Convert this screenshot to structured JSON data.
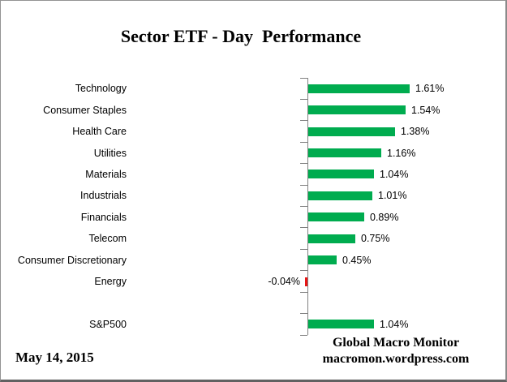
{
  "header": {
    "title": "Sector ETF - Day  Performance"
  },
  "chart_data": {
    "type": "bar",
    "orientation": "horizontal",
    "title": "Sector ETF - Day  Performance",
    "xlabel": "",
    "ylabel": "",
    "value_unit": "%",
    "grid": false,
    "legend": false,
    "categories": [
      "Technology",
      "Consumer Staples",
      "Health Care",
      "Utilities",
      "Materials",
      "Industrials",
      "Financials",
      "Telecom",
      "Consumer Discretionary",
      "Energy",
      "",
      "S&P500"
    ],
    "values": [
      1.61,
      1.54,
      1.38,
      1.16,
      1.04,
      1.01,
      0.89,
      0.75,
      0.45,
      -0.04,
      null,
      1.04
    ],
    "value_labels": [
      "1.61%",
      "1.54%",
      "1.38%",
      "1.16%",
      "1.04%",
      "1.01%",
      "0.89%",
      "0.75%",
      "0.45%",
      "-0.04%",
      "",
      "1.04%"
    ],
    "colors": {
      "positive": "#00AC4F",
      "negative": "#E81414",
      "axis": "#808080",
      "text": "#000000"
    }
  },
  "footer": {
    "date": "May 14, 2015",
    "credit_line1": "Global Macro Monitor",
    "credit_line2": "macromon.wordpress.com"
  }
}
